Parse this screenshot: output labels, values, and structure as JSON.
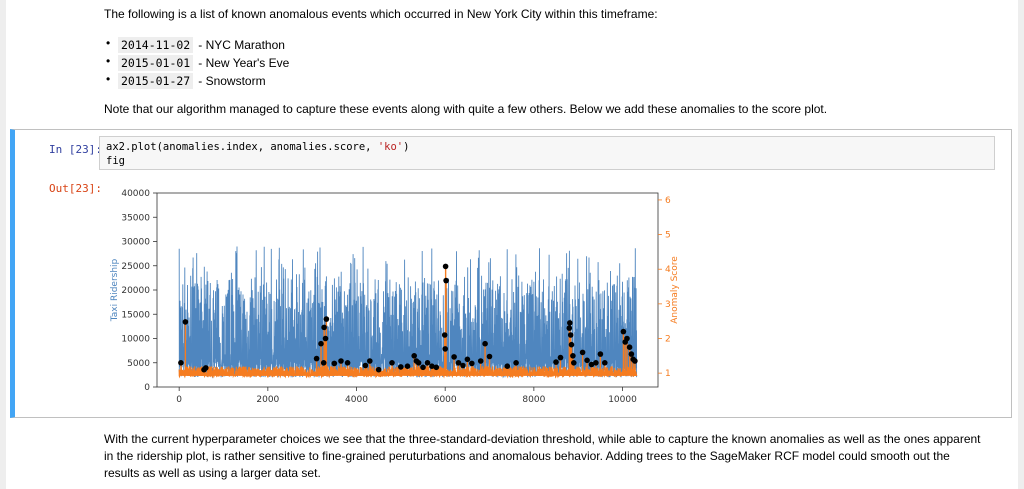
{
  "intro_text": "The following is a list of known anomalous events which occurred in New York City within this timeframe:",
  "events": [
    {
      "date": "2014-11-02",
      "label": "- NYC Marathon"
    },
    {
      "date": "2015-01-01",
      "label": "- New Year's Eve"
    },
    {
      "date": "2015-01-27",
      "label": "- Snowstorm"
    }
  ],
  "note_text": "Note that our algorithm managed to capture these events along with quite a few others. Below we add these anomalies to the score plot.",
  "cell": {
    "in_prompt": "In [23]:",
    "out_prompt": "Out[23]:",
    "code_line1_pre": "ax2.plot(anomalies.index, anomalies.score, ",
    "code_line1_str": "'ko'",
    "code_line1_post": ")",
    "code_line2": "fig"
  },
  "conclusion_text": "With the current hyperparameter choices we see that the three-standard-deviation threshold, while able to capture the known anomalies as well as the ones apparent in the ridership plot, is rather sensitive to fine-grained peruturbations and anomalous behavior. Adding trees to the SageMaker RCF model could smooth out the results as well as using a larger data set.",
  "colors": {
    "ridership": "#4f86bf",
    "score": "#f57c20",
    "anomaly": "#000000",
    "cell_accent": "#42a5f5",
    "in_prompt": "#303f9f",
    "out_prompt": "#d84315"
  },
  "chart_data": {
    "type": "line",
    "xlabel": "",
    "ylabel": "Taxi Ridership",
    "y2label": "Anomaly Score",
    "xlim": [
      -500,
      10800
    ],
    "ylim": [
      0,
      40000
    ],
    "y2lim": [
      0.6,
      6.2
    ],
    "xticks": [
      0,
      2000,
      4000,
      6000,
      8000,
      10000
    ],
    "yticks": [
      0,
      5000,
      10000,
      15000,
      20000,
      25000,
      30000,
      35000,
      40000
    ],
    "y2ticks": [
      1,
      2,
      3,
      4,
      5,
      6
    ],
    "series": [
      {
        "axis": "left",
        "x_range": [
          0,
          10320
        ],
        "typical_range": [
          2000,
          23000
        ],
        "spike_max": 29000
      },
      {
        "axis": "right",
        "x_range": [
          0,
          10320
        ],
        "typical_range": [
          0.9,
          1.2
        ]
      }
    ],
    "anomalies": [
      [
        40,
        1.3
      ],
      [
        140,
        2.48
      ],
      [
        560,
        1.1
      ],
      [
        600,
        1.15
      ],
      [
        3100,
        1.42
      ],
      [
        3200,
        1.85
      ],
      [
        3260,
        1.3
      ],
      [
        3270,
        2.32
      ],
      [
        3300,
        2.0
      ],
      [
        3320,
        2.56
      ],
      [
        3500,
        1.28
      ],
      [
        3650,
        1.35
      ],
      [
        3800,
        1.3
      ],
      [
        4200,
        1.22
      ],
      [
        4300,
        1.35
      ],
      [
        4500,
        1.1
      ],
      [
        4800,
        1.3
      ],
      [
        5000,
        1.18
      ],
      [
        5150,
        1.2
      ],
      [
        5300,
        1.5
      ],
      [
        5350,
        1.35
      ],
      [
        5400,
        1.3
      ],
      [
        5500,
        1.17
      ],
      [
        5600,
        1.3
      ],
      [
        5700,
        1.2
      ],
      [
        5800,
        1.17
      ],
      [
        5990,
        2.1
      ],
      [
        6000,
        1.7
      ],
      [
        6010,
        4.08
      ],
      [
        6020,
        3.67
      ],
      [
        6200,
        1.47
      ],
      [
        6300,
        1.3
      ],
      [
        6400,
        1.22
      ],
      [
        6500,
        1.4
      ],
      [
        6600,
        1.28
      ],
      [
        6800,
        1.35
      ],
      [
        6900,
        1.85
      ],
      [
        7000,
        1.48
      ],
      [
        7400,
        1.2
      ],
      [
        7600,
        1.3
      ],
      [
        8500,
        1.32
      ],
      [
        8600,
        1.45
      ],
      [
        8800,
        2.3
      ],
      [
        8810,
        2.45
      ],
      [
        8830,
        2.1
      ],
      [
        8850,
        1.82
      ],
      [
        8880,
        1.5
      ],
      [
        8900,
        1.3
      ],
      [
        9100,
        1.6
      ],
      [
        9200,
        1.37
      ],
      [
        9300,
        1.25
      ],
      [
        9400,
        1.3
      ],
      [
        9500,
        1.55
      ],
      [
        9600,
        1.3
      ],
      [
        10020,
        2.2
      ],
      [
        10060,
        1.9
      ],
      [
        10100,
        2.0
      ],
      [
        10160,
        1.75
      ],
      [
        10200,
        1.55
      ],
      [
        10240,
        1.4
      ],
      [
        10280,
        1.35
      ]
    ]
  }
}
